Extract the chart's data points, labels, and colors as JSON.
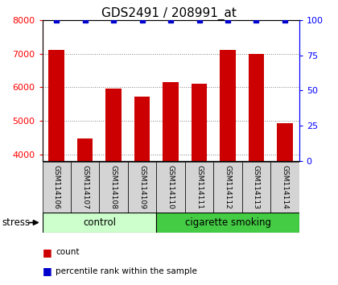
{
  "title": "GDS2491 / 208991_at",
  "samples": [
    "GSM114106",
    "GSM114107",
    "GSM114108",
    "GSM114109",
    "GSM114110",
    "GSM114111",
    "GSM114112",
    "GSM114113",
    "GSM114114"
  ],
  "counts": [
    7100,
    4480,
    5950,
    5720,
    6150,
    6100,
    7100,
    7000,
    4930
  ],
  "percentile_ranks": [
    100,
    100,
    100,
    100,
    100,
    100,
    100,
    100,
    100
  ],
  "ylim_left": [
    3800,
    8000
  ],
  "ylim_right": [
    0,
    100
  ],
  "yticks_left": [
    4000,
    5000,
    6000,
    7000,
    8000
  ],
  "yticks_right": [
    0,
    25,
    50,
    75,
    100
  ],
  "bar_color": "#cc0000",
  "dot_color": "#0000cc",
  "groups": [
    {
      "label": "control",
      "start": 0,
      "end": 3,
      "color": "#ccffcc"
    },
    {
      "label": "cigarette smoking",
      "start": 4,
      "end": 8,
      "color": "#44cc44"
    }
  ],
  "group_label": "stress",
  "legend_count_label": "count",
  "legend_pct_label": "percentile rank within the sample",
  "bg_color": "#ffffff",
  "sample_box_color": "#d4d4d4",
  "title_fontsize": 11,
  "bar_width": 0.55
}
